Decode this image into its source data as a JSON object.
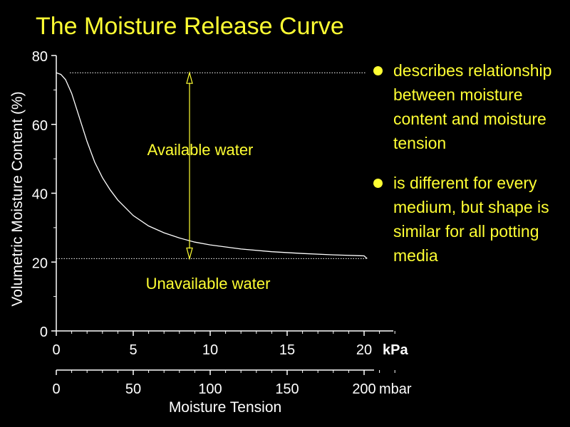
{
  "slide": {
    "title": "The Moisture Release Curve",
    "bullets": [
      "describes relationship between moisture content and moisture tension",
      "is different for every medium, but shape is similar for all potting media"
    ]
  },
  "colors": {
    "background": "#000000",
    "accent": "#ffff33",
    "axis": "#ffffff"
  },
  "chart_data": {
    "type": "line",
    "title": "",
    "ylabel": "Volumetric Moisture Content (%)",
    "xlabel": "Moisture Tension",
    "xunit_primary": "kPa",
    "xunit_secondary": "mbar",
    "xlim": [
      0,
      22
    ],
    "ylim": [
      0,
      80
    ],
    "yticks": [
      0,
      20,
      40,
      60,
      80
    ],
    "xticks_kpa": [
      0,
      5,
      10,
      15,
      20
    ],
    "xticks_mbar": [
      0,
      50,
      100,
      150,
      200
    ],
    "series": [
      {
        "x": [
          0,
          0.3,
          0.6,
          1,
          1.5,
          2,
          2.5,
          3,
          3.5,
          4,
          5,
          6,
          7,
          8,
          9,
          10,
          12,
          14,
          16,
          18,
          20,
          20.2
        ],
        "y": [
          75,
          74.5,
          73,
          69,
          62,
          55,
          49,
          44.5,
          41,
          38,
          33.5,
          30.5,
          28.5,
          27,
          25.8,
          25,
          23.8,
          23,
          22.5,
          22.1,
          21.8,
          21
        ]
      }
    ],
    "reference_lines": [
      {
        "y": 75,
        "style": "dotted"
      },
      {
        "y": 21,
        "style": "dotted"
      }
    ],
    "annotations": [
      {
        "text": "Available water"
      },
      {
        "text": "Unavailable water"
      }
    ]
  }
}
